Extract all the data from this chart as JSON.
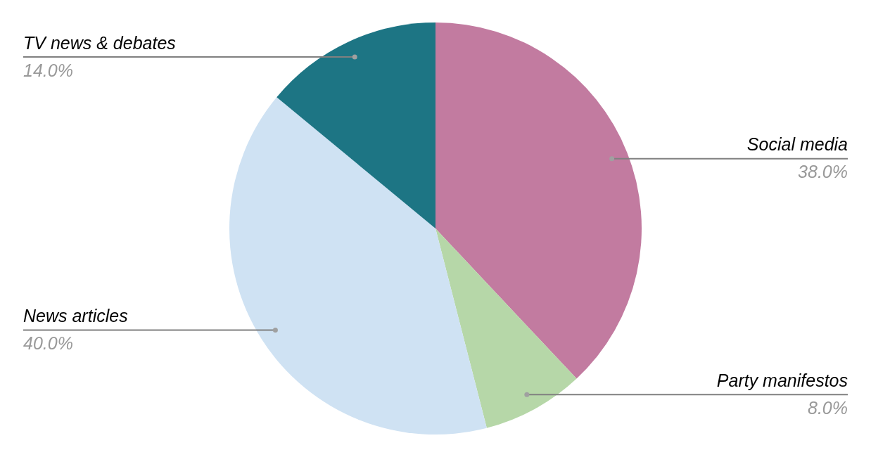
{
  "chart_data": {
    "type": "pie",
    "categories": [
      "Social media",
      "Party manifestos",
      "News articles",
      "TV news & debates"
    ],
    "values": [
      38,
      8,
      40,
      14
    ],
    "colors": [
      "#c27ba0",
      "#b6d7a8",
      "#cfe2f3",
      "#1d7584"
    ],
    "value_labels": [
      "38.0%",
      "8.0%",
      "40.0%",
      "14.0%"
    ],
    "legend": false
  }
}
